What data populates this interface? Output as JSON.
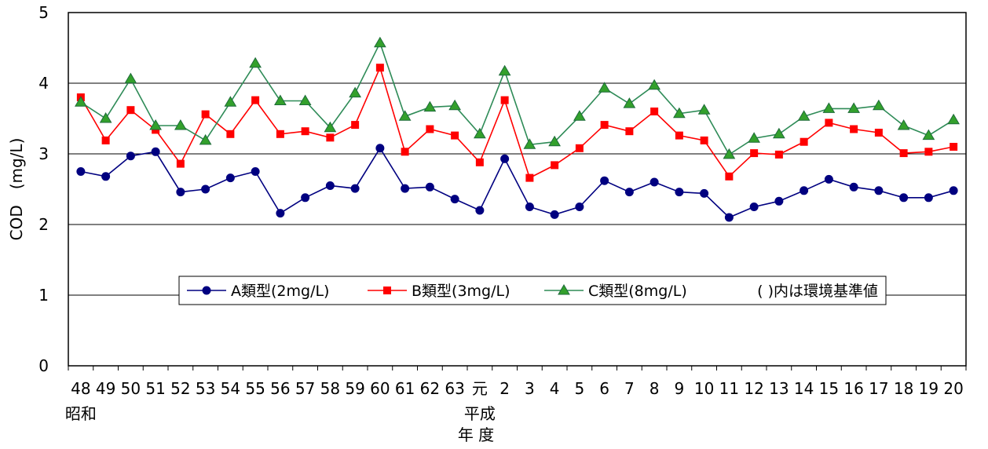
{
  "chart_data": {
    "type": "line",
    "ylabel": "COD　(mg/L)",
    "xlabel": "年 度",
    "ylim": [
      0,
      5
    ],
    "yticks": [
      "0",
      "1",
      "2",
      "3",
      "4",
      "5"
    ],
    "grid": "horizontal",
    "categories": [
      "48",
      "49",
      "50",
      "51",
      "52",
      "53",
      "54",
      "55",
      "56",
      "57",
      "58",
      "59",
      "60",
      "61",
      "62",
      "63",
      "元",
      "2",
      "3",
      "4",
      "5",
      "6",
      "7",
      "8",
      "9",
      "10",
      "11",
      "12",
      "13",
      "14",
      "15",
      "16",
      "17",
      "18",
      "19",
      "20"
    ],
    "era_labels": [
      {
        "text": "昭和",
        "category": "48"
      },
      {
        "text": "平成",
        "category": "元"
      }
    ],
    "legend_position": "center",
    "legend_note": "( )内は環境基準値",
    "series": [
      {
        "name": "A類型(2mg/L)",
        "color": "#000080",
        "marker": "circle",
        "values": [
          2.75,
          2.68,
          2.97,
          3.03,
          2.46,
          2.5,
          2.66,
          2.75,
          2.16,
          2.38,
          2.55,
          2.51,
          3.08,
          2.51,
          2.53,
          2.36,
          2.2,
          2.93,
          2.25,
          2.14,
          2.25,
          2.62,
          2.46,
          2.6,
          2.46,
          2.44,
          2.1,
          2.25,
          2.33,
          2.48,
          2.64,
          2.53,
          2.48,
          2.38,
          2.38,
          2.48
        ]
      },
      {
        "name": "B類型(3mg/L)",
        "color": "#ff0000",
        "marker": "square",
        "values": [
          3.8,
          3.19,
          3.62,
          3.34,
          2.86,
          3.56,
          3.28,
          3.76,
          3.28,
          3.32,
          3.23,
          3.41,
          4.22,
          3.03,
          3.35,
          3.26,
          2.88,
          3.76,
          2.66,
          2.84,
          3.08,
          3.41,
          3.32,
          3.6,
          3.26,
          3.19,
          2.68,
          3.01,
          2.99,
          3.17,
          3.44,
          3.35,
          3.3,
          3.01,
          3.03,
          3.1
        ]
      },
      {
        "name": "C類型(8mg/L)",
        "color": "#2e8b57",
        "fill": "#33a02c",
        "marker": "triangle",
        "values": [
          3.73,
          3.5,
          4.06,
          3.4,
          3.4,
          3.19,
          3.73,
          4.28,
          3.75,
          3.75,
          3.37,
          3.86,
          4.57,
          3.53,
          3.66,
          3.68,
          3.28,
          4.17,
          3.13,
          3.17,
          3.53,
          3.93,
          3.71,
          3.97,
          3.57,
          3.62,
          2.99,
          3.22,
          3.28,
          3.53,
          3.64,
          3.64,
          3.68,
          3.4,
          3.26,
          3.48
        ]
      }
    ]
  }
}
